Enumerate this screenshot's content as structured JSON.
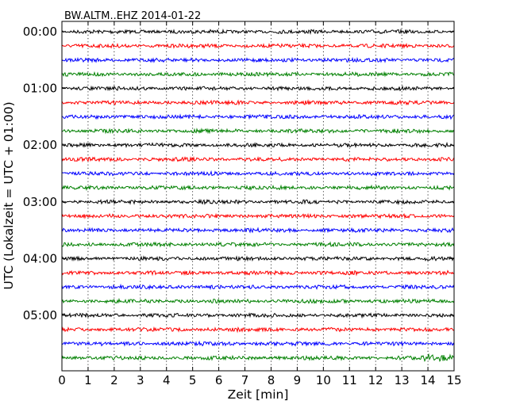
{
  "chart_data": {
    "type": "line",
    "title": "BW.ALTM..EHZ 2014-01-22",
    "xlabel": "Zeit  [min]",
    "ylabel": "UTC (Lokalzeit = UTC + 01:00)",
    "xlim": [
      0,
      15
    ],
    "x_ticks": [
      "0",
      "1",
      "2",
      "3",
      "4",
      "5",
      "6",
      "7",
      "8",
      "9",
      "10",
      "11",
      "12",
      "13",
      "14",
      "15"
    ],
    "y_tick_labels": [
      "00:00",
      "01:00",
      "02:00",
      "03:00",
      "04:00",
      "05:00"
    ],
    "rows_per_hour": 4,
    "row_count": 24,
    "row_colors": [
      "#000000",
      "#ff0000",
      "#0000ff",
      "#008000"
    ],
    "grid": "x-dotted",
    "legend": "none"
  }
}
